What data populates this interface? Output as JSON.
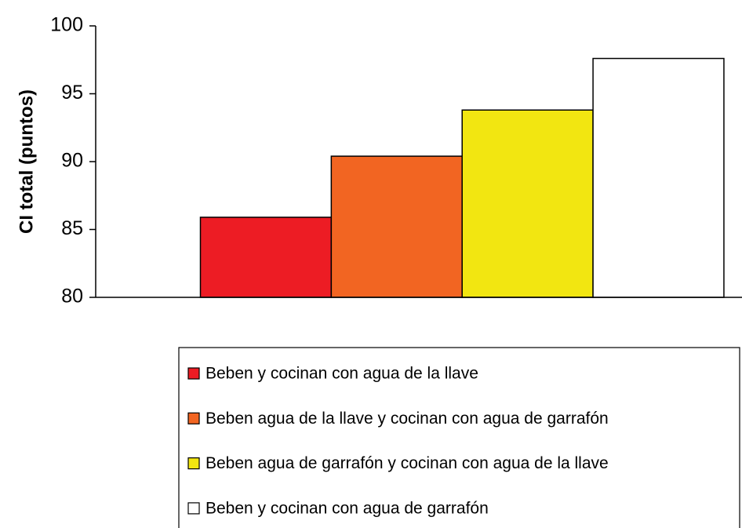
{
  "chart_data": {
    "type": "bar",
    "y_label": "CI total (puntos)",
    "categories": [
      null
    ],
    "series": [
      {
        "name": "Beben y cocinan con agua de la llave",
        "color": "#ed1c24",
        "values": [
          85.9
        ]
      },
      {
        "name": "Beben agua de la llave y cocinan con agua de garrafón",
        "color": "#f26522",
        "values": [
          90.4
        ]
      },
      {
        "name": "Beben agua de garrafón y cocinan con agua de la llave",
        "color": "#f2e611",
        "values": [
          93.8
        ]
      },
      {
        "name": "Beben y cocinan con agua de garrafón",
        "color": "#ffffff",
        "values": [
          97.6
        ]
      }
    ],
    "ylim": [
      80,
      100
    ],
    "yticks": [
      80,
      85,
      90,
      95,
      100
    ],
    "grid": false,
    "legend": "bottom"
  }
}
